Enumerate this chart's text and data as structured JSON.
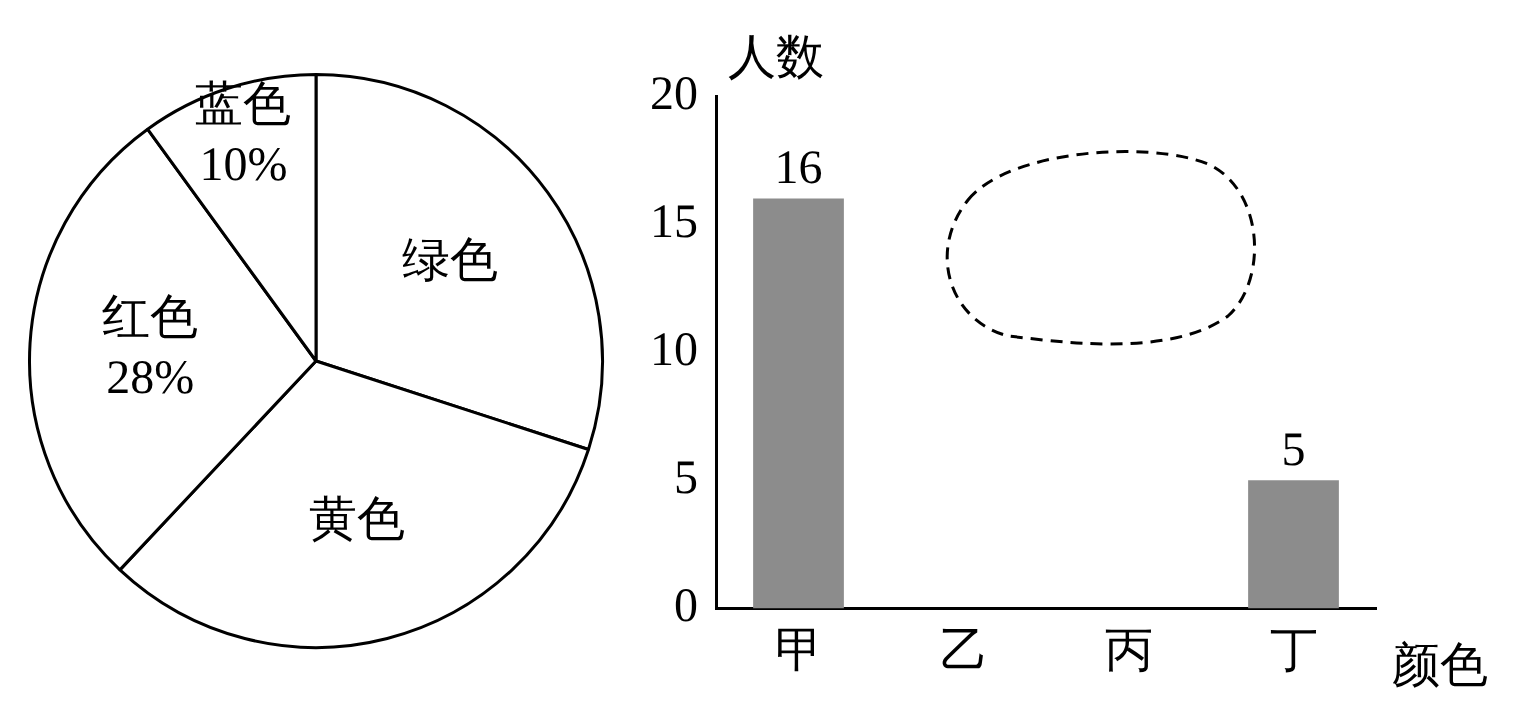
{
  "chart_data": [
    {
      "type": "pie",
      "categories": [
        "绿色",
        "黄色",
        "红色",
        "蓝色"
      ],
      "values": [
        30,
        32,
        28,
        10
      ],
      "colors": [
        "#ffffff",
        "#ffffff",
        "#ffffff",
        "#ffffff"
      ],
      "value_labels": [
        null,
        null,
        "28%",
        "10%"
      ]
    },
    {
      "type": "bar",
      "categories": [
        "甲",
        "乙",
        "丙",
        "丁"
      ],
      "values": [
        16,
        null,
        null,
        5
      ],
      "color": "#8c8c8c",
      "value_labels": [
        "16",
        null,
        null,
        "5"
      ],
      "ylim": [
        0,
        20
      ],
      "yticks": [
        0,
        5,
        10,
        15,
        20
      ],
      "ylabel": "人数",
      "xlabel": "颜色",
      "grid": false,
      "legend": false
    }
  ]
}
